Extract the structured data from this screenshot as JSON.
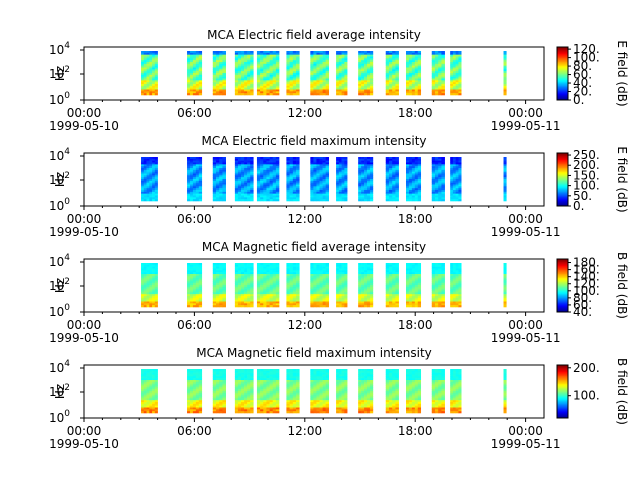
{
  "figure": {
    "xtick_labels": [
      "00:00",
      "06:00",
      "12:00",
      "18:00",
      "00:00"
    ],
    "date_start": "1999-05-10",
    "date_end": "1999-05-11"
  },
  "chart_data": [
    {
      "type": "heatmap",
      "title": "MCA  Electric field average intensity",
      "ylabel": "Hz",
      "colorbar_label": "E field (dB)",
      "x_range": [
        "1999-05-10 00:00",
        "1999-05-11 01:00"
      ],
      "y_scale": "log",
      "y_ticks": [
        "10^0",
        "10^2",
        "10^4"
      ],
      "colorbar_ticks": [
        "0.",
        "20.",
        "40.",
        "60.",
        "80.",
        "100.",
        "120."
      ],
      "colorbar_range": [
        0,
        125
      ],
      "colormap": "jet",
      "profile": "avg",
      "data_intervals_hours": [
        [
          3.1,
          4.0
        ],
        [
          5.6,
          6.4
        ],
        [
          7.0,
          7.7
        ],
        [
          8.2,
          9.2
        ],
        [
          9.4,
          10.6
        ],
        [
          11.0,
          11.7
        ],
        [
          12.3,
          13.3
        ],
        [
          13.7,
          14.3
        ],
        [
          14.9,
          15.7
        ],
        [
          16.4,
          17.1
        ],
        [
          17.5,
          18.3
        ],
        [
          18.9,
          19.6
        ],
        [
          19.9,
          20.5
        ],
        [
          22.8,
          22.95
        ]
      ]
    },
    {
      "type": "heatmap",
      "title": "MCA  Electric field maximum intensity",
      "ylabel": "Hz",
      "colorbar_label": "E field (dB)",
      "x_range": [
        "1999-05-10 00:00",
        "1999-05-11 01:00"
      ],
      "y_scale": "log",
      "y_ticks": [
        "10^0",
        "10^2",
        "10^4"
      ],
      "colorbar_ticks": [
        "0.",
        "50.",
        "100.",
        "150.",
        "200.",
        "250."
      ],
      "colorbar_range": [
        0,
        260
      ],
      "colormap": "jet",
      "profile": "max",
      "data_intervals_hours": [
        [
          3.1,
          4.0
        ],
        [
          5.6,
          6.4
        ],
        [
          7.0,
          7.7
        ],
        [
          8.2,
          9.2
        ],
        [
          9.4,
          10.6
        ],
        [
          11.0,
          11.7
        ],
        [
          12.3,
          13.3
        ],
        [
          13.7,
          14.3
        ],
        [
          14.9,
          15.7
        ],
        [
          16.4,
          17.1
        ],
        [
          17.5,
          18.3
        ],
        [
          18.9,
          19.6
        ],
        [
          19.9,
          20.5
        ],
        [
          22.8,
          22.95
        ]
      ]
    },
    {
      "type": "heatmap",
      "title": "MCA  Magnetic field average intensity",
      "ylabel": "Hz",
      "colorbar_label": "B field (dB)",
      "x_range": [
        "1999-05-10 00:00",
        "1999-05-11 01:00"
      ],
      "y_scale": "log",
      "y_ticks": [
        "10^0",
        "10^2",
        "10^4"
      ],
      "colorbar_ticks": [
        "40.",
        "60.",
        "80.",
        "100.",
        "120.",
        "140.",
        "160.",
        "180."
      ],
      "colorbar_range": [
        40,
        190
      ],
      "colormap": "jet",
      "profile": "bavg",
      "data_intervals_hours": [
        [
          3.1,
          4.0
        ],
        [
          5.6,
          6.4
        ],
        [
          7.0,
          7.7
        ],
        [
          8.2,
          9.2
        ],
        [
          9.4,
          10.6
        ],
        [
          11.0,
          11.7
        ],
        [
          12.3,
          13.3
        ],
        [
          13.7,
          14.3
        ],
        [
          14.9,
          15.7
        ],
        [
          16.4,
          17.1
        ],
        [
          17.5,
          18.3
        ],
        [
          18.9,
          19.6
        ],
        [
          19.9,
          20.5
        ],
        [
          22.8,
          22.95
        ]
      ]
    },
    {
      "type": "heatmap",
      "title": "MCA  Magnetic field maximum intensity",
      "ylabel": "Hz",
      "colorbar_label": "B field (dB)",
      "x_range": [
        "1999-05-10 00:00",
        "1999-05-11 01:00"
      ],
      "y_scale": "log",
      "y_ticks": [
        "10^0",
        "10^2",
        "10^4"
      ],
      "colorbar_ticks": [
        "100.",
        "200."
      ],
      "colorbar_range": [
        20,
        210
      ],
      "colormap": "jet",
      "profile": "bmax",
      "data_intervals_hours": [
        [
          3.1,
          4.0
        ],
        [
          5.6,
          6.4
        ],
        [
          7.0,
          7.7
        ],
        [
          8.2,
          9.2
        ],
        [
          9.4,
          10.6
        ],
        [
          11.0,
          11.7
        ],
        [
          12.3,
          13.3
        ],
        [
          13.7,
          14.3
        ],
        [
          14.9,
          15.7
        ],
        [
          16.4,
          17.1
        ],
        [
          17.5,
          18.3
        ],
        [
          18.9,
          19.6
        ],
        [
          19.9,
          20.5
        ],
        [
          22.8,
          22.95
        ]
      ]
    }
  ]
}
